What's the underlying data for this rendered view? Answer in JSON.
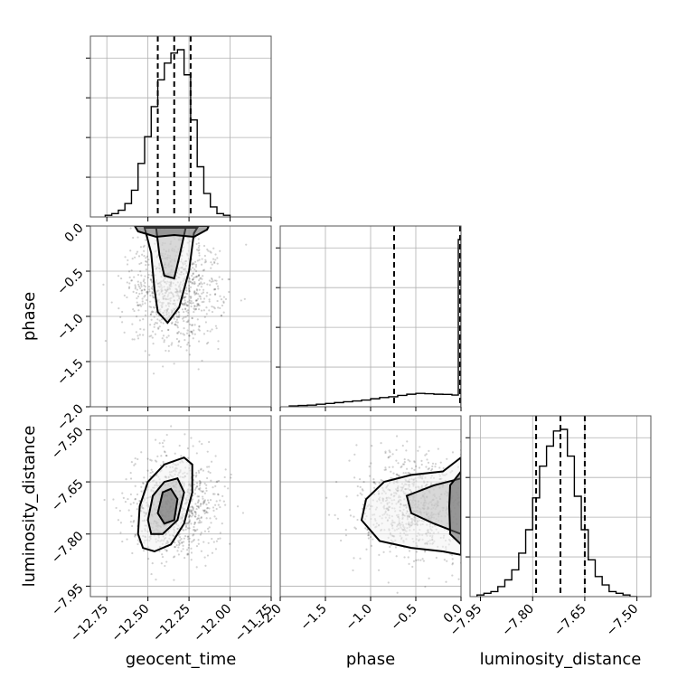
{
  "chart_data": {
    "type": "corner",
    "parameters": [
      "geocent_time",
      "phase",
      "luminosity_distance"
    ],
    "labels": {
      "geocent_time": "geocent_time",
      "phase": "phase",
      "luminosity_distance": "luminosity_distance"
    },
    "ranges": {
      "geocent_time": [
        -12.85,
        -11.75
      ],
      "phase": [
        -2.0,
        0.0
      ],
      "luminosity_distance": [
        -7.98,
        -7.46
      ]
    },
    "ticks": {
      "geocent_time": [
        -12.75,
        -12.5,
        -12.25,
        -12.0,
        -11.75
      ],
      "phase": [
        -2.0,
        -1.5,
        -1.0,
        -0.5,
        0.0
      ],
      "luminosity_distance": [
        -7.95,
        -7.8,
        -7.65,
        -7.5
      ]
    },
    "tick_labels": {
      "geocent_time": [
        "−12.75",
        "−12.50",
        "−12.25",
        "−12.00",
        "−11.75"
      ],
      "phase": [
        "−2.0",
        "−1.5",
        "−1.0",
        "−0.5",
        "0.0"
      ],
      "luminosity_distance": [
        "−7.95",
        "−7.80",
        "−7.65",
        "−7.50"
      ]
    },
    "quantiles": {
      "geocent_time": [
        -12.44,
        -12.34,
        -12.24
      ],
      "phase": [
        -0.74,
        -0.01,
        0.0
      ],
      "luminosity_distance": [
        -7.79,
        -7.72,
        -7.65
      ]
    },
    "histograms": {
      "geocent_time": {
        "bins": [
          -12.76,
          -12.72,
          -12.68,
          -12.64,
          -12.6,
          -12.56,
          -12.52,
          -12.48,
          -12.44,
          -12.4,
          -12.36,
          -12.32,
          -12.28,
          -12.24,
          -12.2,
          -12.16,
          -12.12,
          -12.08,
          -12.04,
          -12.0
        ],
        "counts": [
          0.01,
          0.02,
          0.04,
          0.08,
          0.16,
          0.32,
          0.48,
          0.66,
          0.82,
          0.92,
          0.98,
          1.0,
          0.85,
          0.58,
          0.3,
          0.14,
          0.06,
          0.02,
          0.01
        ]
      },
      "phase": {
        "bins": [
          -1.9,
          -1.8,
          -1.7,
          -1.6,
          -1.5,
          -1.4,
          -1.3,
          -1.2,
          -1.1,
          -1.0,
          -0.9,
          -0.8,
          -0.7,
          -0.6,
          -0.5,
          -0.4,
          -0.3,
          -0.2,
          -0.1,
          -0.03,
          0.0
        ],
        "counts": [
          0.005,
          0.008,
          0.01,
          0.015,
          0.02,
          0.025,
          0.03,
          0.035,
          0.04,
          0.048,
          0.055,
          0.06,
          0.068,
          0.075,
          0.08,
          0.078,
          0.075,
          0.074,
          0.07,
          1.0
        ]
      },
      "luminosity_distance": {
        "bins": [
          -7.96,
          -7.94,
          -7.92,
          -7.9,
          -7.88,
          -7.86,
          -7.84,
          -7.82,
          -7.8,
          -7.78,
          -7.76,
          -7.74,
          -7.72,
          -7.7,
          -7.68,
          -7.66,
          -7.64,
          -7.62,
          -7.6,
          -7.58,
          -7.56,
          -7.54,
          -7.52,
          -7.5
        ],
        "counts": [
          0.01,
          0.02,
          0.03,
          0.06,
          0.1,
          0.16,
          0.26,
          0.4,
          0.59,
          0.78,
          0.9,
          0.99,
          1.0,
          0.84,
          0.6,
          0.4,
          0.22,
          0.12,
          0.07,
          0.03,
          0.02,
          0.01,
          0.0
        ]
      }
    },
    "contours_2d": {
      "geocent_time__phase": {
        "point_cloud_center": [
          -12.34,
          -0.7
        ],
        "levels": [
          [
            [
              -12.52,
              -0.02
            ],
            [
              -12.48,
              -0.3
            ],
            [
              -12.46,
              -0.7
            ],
            [
              -12.44,
              -0.95
            ],
            [
              -12.38,
              -1.07
            ],
            [
              -12.31,
              -0.9
            ],
            [
              -12.25,
              -0.5
            ],
            [
              -12.22,
              -0.08
            ],
            [
              -12.2,
              -0.02
            ]
          ],
          [
            [
              -12.45,
              -0.02
            ],
            [
              -12.43,
              -0.32
            ],
            [
              -12.4,
              -0.55
            ],
            [
              -12.34,
              -0.58
            ],
            [
              -12.31,
              -0.35
            ],
            [
              -12.28,
              -0.1
            ],
            [
              -12.27,
              -0.02
            ]
          ],
          [
            [
              -12.58,
              0.0
            ],
            [
              -12.56,
              -0.06
            ],
            [
              -12.45,
              -0.12
            ],
            [
              -12.34,
              -0.1
            ],
            [
              -12.22,
              -0.12
            ],
            [
              -12.14,
              -0.04
            ],
            [
              -12.13,
              0.0
            ]
          ]
        ]
      },
      "geocent_time__luminosity_distance": {
        "point_cloud_center": [
          -12.34,
          -7.72
        ],
        "levels": [
          [
            [
              -12.56,
              -7.8
            ],
            [
              -12.55,
              -7.72
            ],
            [
              -12.5,
              -7.65
            ],
            [
              -12.4,
              -7.6
            ],
            [
              -12.28,
              -7.58
            ],
            [
              -12.23,
              -7.6
            ],
            [
              -12.23,
              -7.68
            ],
            [
              -12.28,
              -7.77
            ],
            [
              -12.36,
              -7.83
            ],
            [
              -12.46,
              -7.85
            ],
            [
              -12.53,
              -7.84
            ]
          ],
          [
            [
              -12.5,
              -7.76
            ],
            [
              -12.47,
              -7.69
            ],
            [
              -12.4,
              -7.65
            ],
            [
              -12.32,
              -7.64
            ],
            [
              -12.28,
              -7.68
            ],
            [
              -12.32,
              -7.76
            ],
            [
              -12.41,
              -7.8
            ],
            [
              -12.48,
              -7.8
            ]
          ],
          [
            [
              -12.44,
              -7.74
            ],
            [
              -12.41,
              -7.68
            ],
            [
              -12.36,
              -7.67
            ],
            [
              -12.32,
              -7.7
            ],
            [
              -12.34,
              -7.76
            ],
            [
              -12.4,
              -7.77
            ]
          ]
        ]
      },
      "phase__luminosity_distance": {
        "point_cloud_center": [
          -0.5,
          -7.72
        ],
        "levels": [
          [
            [
              0.0,
              -7.58
            ],
            [
              -0.2,
              -7.62
            ],
            [
              -0.55,
              -7.63
            ],
            [
              -0.85,
              -7.65
            ],
            [
              -1.05,
              -7.7
            ],
            [
              -1.1,
              -7.76
            ],
            [
              -0.9,
              -7.82
            ],
            [
              -0.55,
              -7.84
            ],
            [
              -0.2,
              -7.85
            ],
            [
              0.0,
              -7.86
            ]
          ],
          [
            [
              0.0,
              -7.64
            ],
            [
              -0.3,
              -7.66
            ],
            [
              -0.6,
              -7.69
            ],
            [
              -0.55,
              -7.74
            ],
            [
              -0.3,
              -7.77
            ],
            [
              0.0,
              -7.8
            ]
          ],
          [
            [
              0.0,
              -7.62
            ],
            [
              -0.12,
              -7.66
            ],
            [
              -0.13,
              -7.72
            ],
            [
              -0.12,
              -7.8
            ],
            [
              0.0,
              -7.83
            ]
          ]
        ]
      }
    },
    "grid": true
  }
}
